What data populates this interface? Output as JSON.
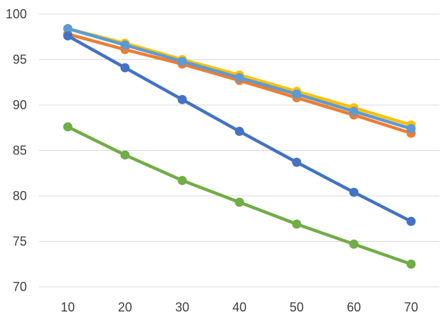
{
  "chart_data": {
    "type": "line",
    "title": "",
    "xlabel": "",
    "ylabel": "",
    "x": [
      10,
      20,
      30,
      40,
      50,
      60,
      70
    ],
    "xlim": [
      10,
      70
    ],
    "ylim": [
      70,
      100
    ],
    "y_ticks": [
      70,
      75,
      80,
      85,
      90,
      95,
      100
    ],
    "grid": "horizontal",
    "legend": "none",
    "series": [
      {
        "color": "#FFC000",
        "values": [
          98.4,
          96.8,
          95.0,
          93.3,
          91.5,
          89.7,
          87.8
        ]
      },
      {
        "color": "#ED7D31",
        "values": [
          97.8,
          96.1,
          94.5,
          92.7,
          90.8,
          88.9,
          86.9
        ]
      },
      {
        "color": "#5B9BD5",
        "values": [
          98.4,
          96.6,
          94.8,
          93.0,
          91.2,
          89.3,
          87.4
        ]
      },
      {
        "color": "#4472C4",
        "values": [
          97.6,
          94.1,
          90.6,
          87.1,
          83.7,
          80.4,
          77.2
        ]
      },
      {
        "color": "#70AD47",
        "values": [
          87.6,
          84.5,
          81.7,
          79.3,
          76.9,
          74.7,
          72.5
        ]
      }
    ]
  }
}
